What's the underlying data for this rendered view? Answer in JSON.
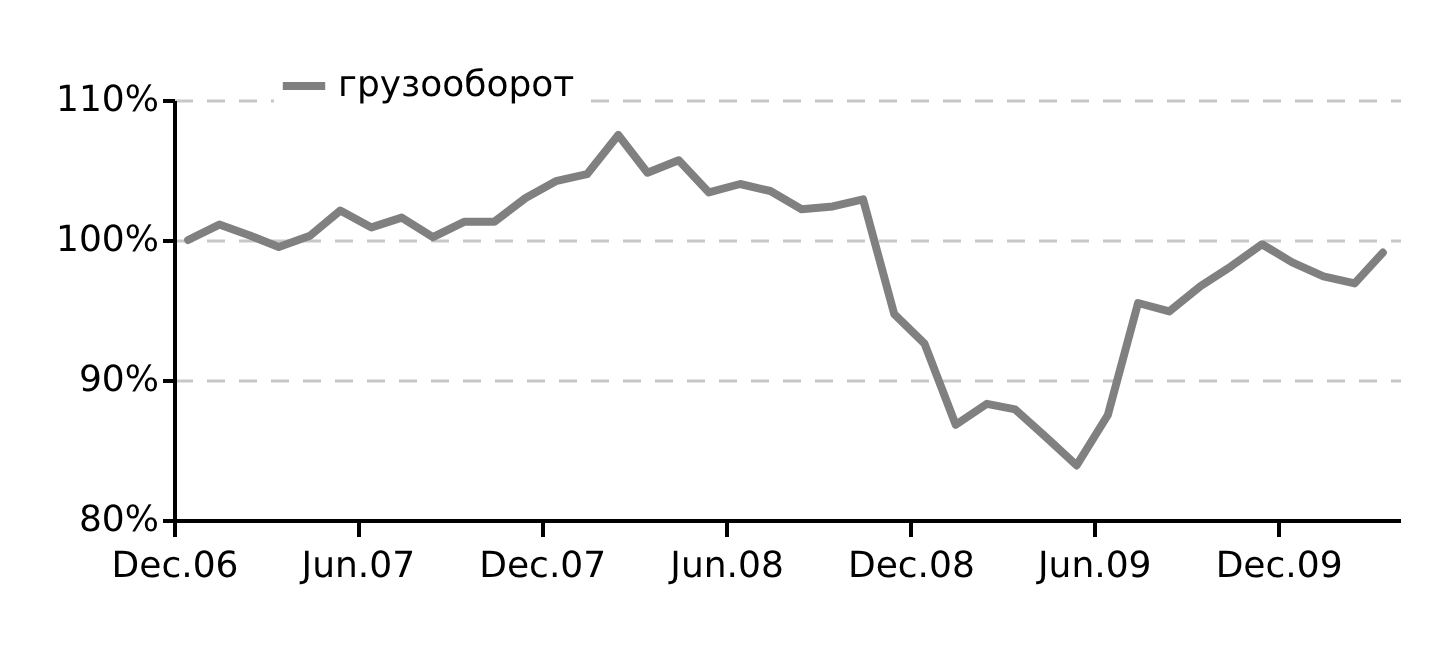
{
  "chart_data": {
    "type": "line",
    "x": [
      "2006-12-15",
      "2007-01-15",
      "2007-02-15",
      "2007-03-15",
      "2007-04-15",
      "2007-05-15",
      "2007-06-15",
      "2007-07-15",
      "2007-08-15",
      "2007-09-15",
      "2007-10-15",
      "2007-11-15",
      "2007-12-15",
      "2008-01-15",
      "2008-02-15",
      "2008-03-15",
      "2008-04-15",
      "2008-05-15",
      "2008-06-15",
      "2008-07-15",
      "2008-08-15",
      "2008-09-15",
      "2008-10-15",
      "2008-11-15",
      "2008-12-15",
      "2009-01-15",
      "2009-02-15",
      "2009-03-15",
      "2009-04-15",
      "2009-05-15",
      "2009-06-15",
      "2009-07-15",
      "2009-08-15",
      "2009-09-15",
      "2009-10-15",
      "2009-11-15",
      "2009-12-15",
      "2010-01-15",
      "2010-02-15",
      "2010-03-15"
    ],
    "series": [
      {
        "name": "грузооборот",
        "color": "#808080",
        "values": [
          100.0,
          101.1,
          100.3,
          99.5,
          100.3,
          102.1,
          100.9,
          101.6,
          100.2,
          101.3,
          101.3,
          103.0,
          104.2,
          104.7,
          107.5,
          104.8,
          105.7,
          103.4,
          104.0,
          103.5,
          102.2,
          102.4,
          102.9,
          94.7,
          92.6,
          86.8,
          88.3,
          87.9,
          85.9,
          83.9,
          87.5,
          95.5,
          94.9,
          96.7,
          98.1,
          99.7,
          98.4,
          97.4,
          96.9,
          99.1
        ]
      }
    ],
    "xlim": [
      "2006-12-01",
      "2010-04-01"
    ],
    "xticks": [
      {
        "value": "2006-12-01",
        "label": "Dec.06"
      },
      {
        "value": "2007-06-01",
        "label": "Jun.07"
      },
      {
        "value": "2007-12-01",
        "label": "Dec.07"
      },
      {
        "value": "2008-06-01",
        "label": "Jun.08"
      },
      {
        "value": "2008-12-01",
        "label": "Dec.08"
      },
      {
        "value": "2009-06-01",
        "label": "Jun.09"
      },
      {
        "value": "2009-12-01",
        "label": "Dec.09"
      }
    ],
    "ylim": [
      80,
      110
    ],
    "yticks": [
      {
        "value": 80,
        "label": "80%"
      },
      {
        "value": 90,
        "label": "90%"
      },
      {
        "value": 100,
        "label": "100%"
      },
      {
        "value": 110,
        "label": "110%"
      }
    ],
    "grid": "y",
    "legend": "top left",
    "marker": "none",
    "line_style": "solid"
  }
}
